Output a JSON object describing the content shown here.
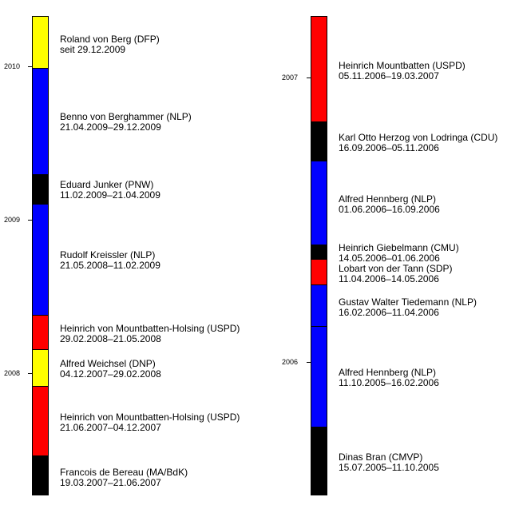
{
  "timeline": {
    "left": {
      "years": [
        "2010",
        "2009",
        "2008"
      ],
      "entries": [
        {
          "name": "Roland von Berg (DFP)",
          "dates": "seit 29.12.2009",
          "color": "#ffff00"
        },
        {
          "name": "Benno von Berghammer (NLP)",
          "dates": "21.04.2009–29.12.2009",
          "color": "#0000ff"
        },
        {
          "name": "Eduard Junker (PNW)",
          "dates": "11.02.2009–21.04.2009",
          "color": "#000000"
        },
        {
          "name": "Rudolf Kreissler (NLP)",
          "dates": "21.05.2008–11.02.2009",
          "color": "#0000ff"
        },
        {
          "name": "Heinrich von Mountbatten-Holsing (USPD)",
          "dates": "29.02.2008–21.05.2008",
          "color": "#ff0000"
        },
        {
          "name": "Alfred Weichsel (DNP)",
          "dates": "04.12.2007–29.02.2008",
          "color": "#ffff00"
        },
        {
          "name": "Heinrich von Mountbatten-Holsing (USPD)",
          "dates": "21.06.2007–04.12.2007",
          "color": "#ff0000"
        },
        {
          "name": "Francois de Bereau (MA/BdK)",
          "dates": "19.03.2007–21.06.2007",
          "color": "#000000"
        }
      ]
    },
    "right": {
      "years": [
        "2007",
        "2006"
      ],
      "entries": [
        {
          "name": "Heinrich Mountbatten (USPD)",
          "dates": "05.11.2006–19.03.2007",
          "color": "#ff0000"
        },
        {
          "name": "Karl Otto Herzog von Lodringa (CDU)",
          "dates": "16.09.2006–05.11.2006",
          "color": "#000000"
        },
        {
          "name": "Alfred Hennberg (NLP)",
          "dates": "01.06.2006–16.09.2006",
          "color": "#0000ff"
        },
        {
          "name": "Heinrich Giebelmann (CMU)",
          "dates": "14.05.2006–01.06.2006",
          "color": "#000000"
        },
        {
          "name": "Lobart von der Tann (SDP)",
          "dates": "11.04.2006–14.05.2006",
          "color": "#ff0000"
        },
        {
          "name": "Gustav Walter Tiedemann (NLP)",
          "dates": "16.02.2006–11.04.2006",
          "color": "#0000ff"
        },
        {
          "name": "Alfred Hennberg (NLP)",
          "dates": "11.10.2005–16.02.2006",
          "color": "#0000ff"
        },
        {
          "name": "Dinas Bran (CMVP)",
          "dates": " 15.07.2005–11.10.2005",
          "color": "#000000"
        }
      ]
    }
  }
}
